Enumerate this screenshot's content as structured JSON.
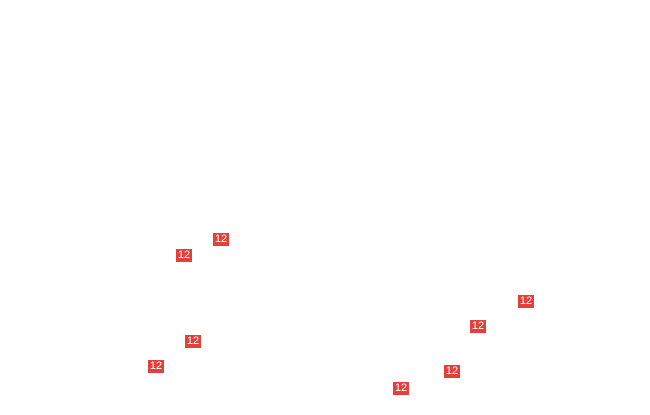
{
  "callouts": [
    {
      "label": "12"
    },
    {
      "label": "12"
    },
    {
      "label": "12"
    },
    {
      "label": "12"
    },
    {
      "label": "12"
    },
    {
      "label": "12"
    },
    {
      "label": "12"
    },
    {
      "label": "12"
    }
  ]
}
